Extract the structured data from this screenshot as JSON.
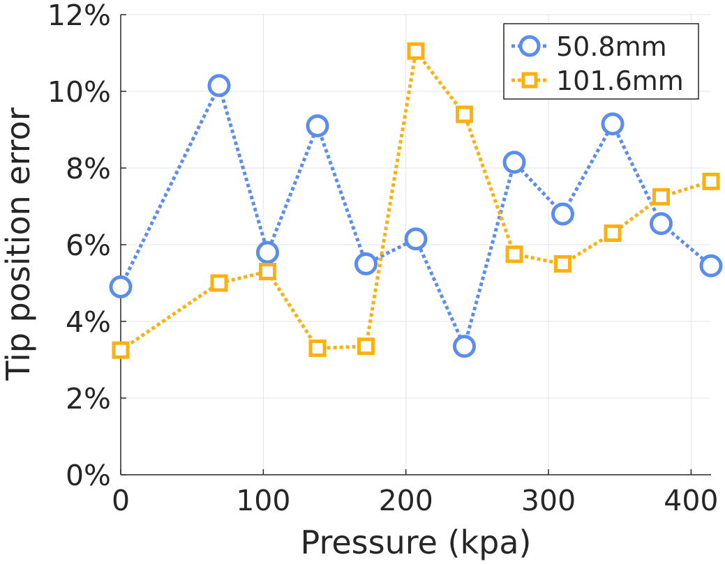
{
  "chart_data": {
    "type": "line",
    "xlabel": "Pressure (kpa)",
    "ylabel": "Tip position error",
    "xlim": [
      0,
      414
    ],
    "ylim": [
      0,
      12
    ],
    "xticks": [
      0,
      100,
      200,
      300,
      400
    ],
    "yticks": [
      0,
      2,
      4,
      6,
      8,
      10,
      12
    ],
    "ytick_suffix": "%",
    "grid": true,
    "legend_position": "top-right",
    "series": [
      {
        "name": "50.8mm",
        "marker": "circle",
        "line_style": "dotted",
        "color": "#5B8DEF",
        "x": [
          0,
          69,
          103,
          138,
          172,
          207,
          241,
          276,
          310,
          345,
          379,
          414
        ],
        "y": [
          4.9,
          10.15,
          5.8,
          9.1,
          5.5,
          6.15,
          3.35,
          8.15,
          6.8,
          9.15,
          6.55,
          5.45
        ]
      },
      {
        "name": "101.6mm",
        "marker": "square",
        "line_style": "dotted",
        "color": "#FFB00F",
        "x": [
          0,
          69,
          103,
          138,
          172,
          207,
          241,
          276,
          310,
          345,
          379,
          414
        ],
        "y": [
          3.25,
          5.0,
          5.3,
          3.3,
          3.35,
          11.05,
          9.4,
          5.75,
          5.5,
          6.3,
          7.25,
          7.65
        ]
      }
    ]
  }
}
